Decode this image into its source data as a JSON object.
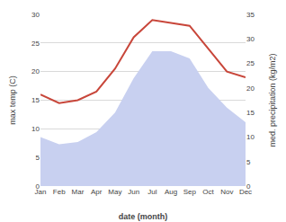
{
  "chart_data": {
    "type": "line",
    "categories": [
      "Jan",
      "Feb",
      "Mar",
      "Apr",
      "May",
      "Jun",
      "Jul",
      "Aug",
      "Sep",
      "Oct",
      "Nov",
      "Dec"
    ],
    "series": [
      {
        "type": "area",
        "axis": "y2",
        "color": "#c8d0f0",
        "values": [
          10.0,
          8.5,
          9.0,
          11.0,
          15.0,
          22.0,
          27.5,
          27.5,
          26.0,
          20.0,
          16.0,
          13.0
        ]
      },
      {
        "type": "line",
        "color": "#c8463a",
        "values": [
          16.0,
          14.5,
          15.0,
          16.5,
          20.5,
          26.0,
          29.0,
          28.5,
          28.0,
          24.0,
          20.0,
          19.0
        ]
      }
    ],
    "xlabel": "date (month)",
    "ylabel": "max temp (C)",
    "y2label": "med. precipitation (kg/m2)",
    "ylim": [
      0,
      30
    ],
    "yticks": [
      0,
      5,
      10,
      15,
      20,
      25,
      30
    ],
    "y2lim": [
      0,
      35
    ],
    "y2ticks": [
      0,
      5,
      10,
      15,
      20,
      25,
      30,
      35
    ],
    "grid": true
  }
}
